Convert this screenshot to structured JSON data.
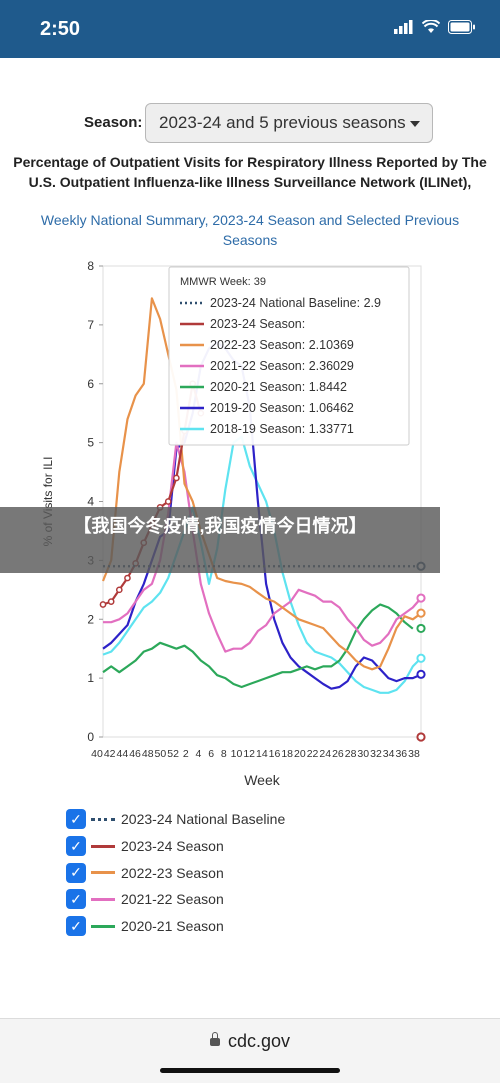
{
  "status": {
    "time": "2:50"
  },
  "season": {
    "label": "Season:",
    "selected": "2023-24 and 5 previous seasons"
  },
  "title": "Percentage of Outpatient Visits for Respiratory Illness Reported by The U.S. Outpatient Influenza-like Illness Surveillance Network (ILINet),",
  "subtitle": "Weekly National Summary, 2023-24 Season and Selected Previous Seasons",
  "banner": "【我国今冬疫情,我国疫情今日情况】",
  "browser": {
    "url": "cdc.gov"
  },
  "colors": {
    "baseline": "#2f4f6f",
    "s2023_24": "#b03a3a",
    "s2022_23": "#e8924a",
    "s2021_22": "#e26fc0",
    "s2020_21": "#2ca85a",
    "s2019_20": "#2d22c8",
    "s2018_19": "#5ee3f0",
    "checkbox": "#1a73e8",
    "statusbar": "#1f5a8c"
  },
  "tooltip": {
    "header": "MMWR Week: 39",
    "rows": [
      {
        "label": "2023-24 National Baseline:",
        "value": "2.9",
        "color": "#2f4f6f",
        "dotted": true
      },
      {
        "label": "2023-24 Season:",
        "value": "",
        "color": "#b03a3a"
      },
      {
        "label": "2022-23 Season:",
        "value": "2.10369",
        "color": "#e8924a"
      },
      {
        "label": "2021-22 Season:",
        "value": "2.36029",
        "color": "#e26fc0"
      },
      {
        "label": "2020-21 Season:",
        "value": "1.8442",
        "color": "#2ca85a"
      },
      {
        "label": "2019-20 Season:",
        "value": "1.06462",
        "color": "#2d22c8"
      },
      {
        "label": "2018-19 Season:",
        "value": "1.33771",
        "color": "#5ee3f0"
      }
    ]
  },
  "legend": [
    {
      "label": "2023-24 National Baseline",
      "color": "#2f4f6f",
      "dotted": true
    },
    {
      "label": "2023-24 Season",
      "color": "#b03a3a"
    },
    {
      "label": "2022-23 Season",
      "color": "#e8924a"
    },
    {
      "label": "2021-22 Season",
      "color": "#e26fc0"
    },
    {
      "label": "2020-21 Season",
      "color": "#2ca85a"
    }
  ],
  "chart_data": {
    "type": "line",
    "xlabel": "Week",
    "ylabel": "% of Visits for ILI",
    "ylim": [
      0,
      8
    ],
    "yticks": [
      0,
      1,
      2,
      3,
      4,
      5,
      6,
      7,
      8
    ],
    "x_tick_labels": [
      "40",
      "42",
      "44",
      "46",
      "48",
      "50",
      "52",
      "2",
      "4",
      "6",
      "8",
      "10",
      "12",
      "14",
      "16",
      "18",
      "20",
      "22",
      "24",
      "26",
      "28",
      "30",
      "32",
      "34",
      "36",
      "38"
    ],
    "baseline": 2.9,
    "series": [
      {
        "name": "2023-24 Season",
        "color": "#b03a3a",
        "markers": true,
        "values": [
          2.25,
          2.3,
          2.5,
          2.7,
          2.95,
          3.3,
          3.6,
          3.9,
          4.0,
          4.4,
          5.2,
          6.0,
          5.5
        ]
      },
      {
        "name": "2022-23 Season",
        "color": "#e8924a",
        "values": [
          2.65,
          3.0,
          4.5,
          5.4,
          5.8,
          6.0,
          7.45,
          7.1,
          6.5,
          5.9,
          4.3,
          4.0,
          3.5,
          3.1,
          2.7,
          2.65,
          2.62,
          2.6,
          2.55,
          2.45,
          2.35,
          2.3,
          2.2,
          2.1,
          2.0,
          1.95,
          1.9,
          1.85,
          1.7,
          1.55,
          1.45,
          1.3,
          1.2,
          1.15,
          1.2,
          1.5,
          1.85,
          2.05,
          2.0,
          2.1
        ]
      },
      {
        "name": "2021-22 Season",
        "color": "#e26fc0",
        "values": [
          1.95,
          1.95,
          2.0,
          2.1,
          2.3,
          2.5,
          2.6,
          3.0,
          3.8,
          5.0,
          4.5,
          3.5,
          2.6,
          2.1,
          1.75,
          1.45,
          1.5,
          1.5,
          1.6,
          1.8,
          1.9,
          2.1,
          2.2,
          2.3,
          2.5,
          2.45,
          2.4,
          2.3,
          2.3,
          2.2,
          2.0,
          1.85,
          1.65,
          1.55,
          1.6,
          1.75,
          2.0,
          2.1,
          2.2,
          2.36
        ]
      },
      {
        "name": "2020-21 Season",
        "color": "#2ca85a",
        "values": [
          1.1,
          1.2,
          1.1,
          1.2,
          1.3,
          1.45,
          1.5,
          1.6,
          1.55,
          1.5,
          1.55,
          1.45,
          1.3,
          1.2,
          1.05,
          1.0,
          0.9,
          0.85,
          0.9,
          0.95,
          1.0,
          1.05,
          1.1,
          1.1,
          1.15,
          1.2,
          1.15,
          1.2,
          1.2,
          1.3,
          1.5,
          1.8,
          2.0,
          2.15,
          2.25,
          2.2,
          2.1,
          1.95,
          1.84
        ]
      },
      {
        "name": "2019-20 Season",
        "color": "#2d22c8",
        "values": [
          1.5,
          1.6,
          1.75,
          1.9,
          2.3,
          2.6,
          3.0,
          3.4,
          3.5,
          4.9,
          5.0,
          5.5,
          6.3,
          6.6,
          6.7,
          6.6,
          6.4,
          6.3,
          5.6,
          4.0,
          2.6,
          2.0,
          1.6,
          1.35,
          1.2,
          1.1,
          1.0,
          0.9,
          0.82,
          0.85,
          0.95,
          1.2,
          1.35,
          1.3,
          1.15,
          1.0,
          0.95,
          1.0,
          1.0,
          1.06
        ]
      },
      {
        "name": "2018-19 Season",
        "color": "#5ee3f0",
        "values": [
          1.4,
          1.45,
          1.6,
          1.8,
          2.0,
          2.2,
          2.3,
          2.45,
          2.7,
          3.1,
          3.5,
          3.9,
          3.3,
          2.6,
          3.2,
          4.2,
          5.0,
          5.1,
          4.6,
          4.3,
          4.0,
          3.5,
          2.8,
          2.3,
          1.9,
          1.6,
          1.45,
          1.4,
          1.35,
          1.25,
          1.1,
          0.95,
          0.85,
          0.8,
          0.75,
          0.75,
          0.8,
          0.95,
          1.2,
          1.34
        ]
      }
    ]
  }
}
